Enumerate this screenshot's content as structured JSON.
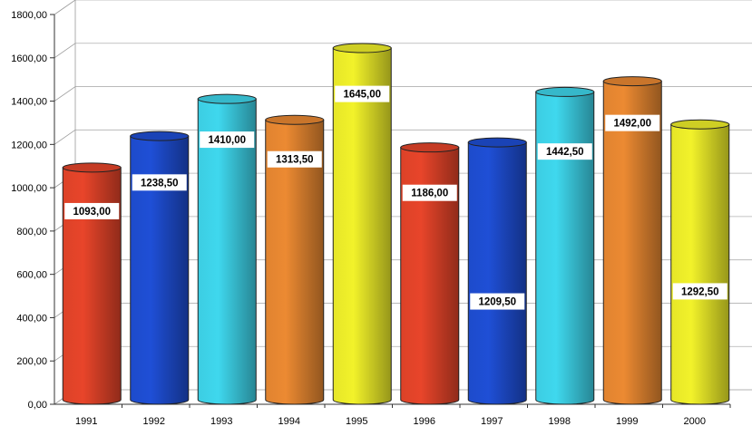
{
  "chart_data": {
    "type": "bar",
    "style": "3d-cylinder",
    "categories": [
      "1991",
      "1992",
      "1993",
      "1994",
      "1995",
      "1996",
      "1997",
      "1998",
      "1999",
      "2000"
    ],
    "values": [
      1093.0,
      1238.5,
      1410.0,
      1313.5,
      1645.0,
      1186.0,
      1209.5,
      1442.5,
      1492.0,
      1292.5
    ],
    "data_labels": [
      "1093,00",
      "1238,50",
      "1410,00",
      "1313,50",
      "1645,00",
      "1186,00",
      "1209,50",
      "1442,50",
      "1492,00",
      "1292,50"
    ],
    "yticks": [
      "0,00",
      "200,00",
      "400,00",
      "600,00",
      "800,00",
      "1000,00",
      "1200,00",
      "1400,00",
      "1600,00",
      "1800,00"
    ],
    "ylim": [
      0,
      1800
    ],
    "grid": true,
    "legend": "none",
    "title": "",
    "xlabel": "",
    "ylabel": "",
    "colors": [
      "#e8452a",
      "#1f4fd6",
      "#3fd8ee",
      "#ec8a32",
      "#f2f22a",
      "#e8452a",
      "#1f4fd6",
      "#3fd8ee",
      "#ec8a32",
      "#f2f22a"
    ]
  }
}
